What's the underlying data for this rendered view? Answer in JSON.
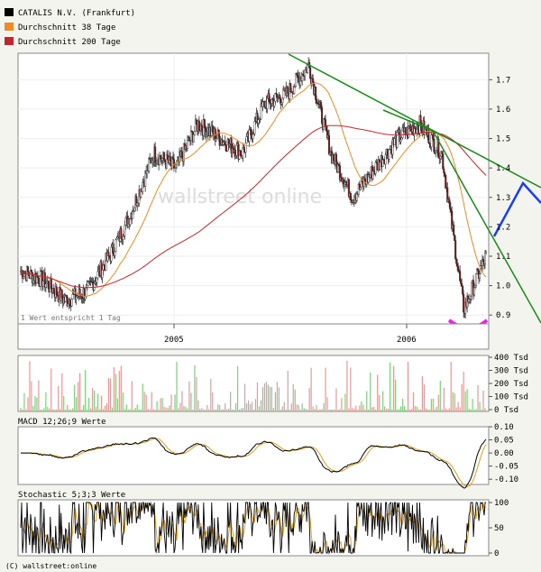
{
  "legend": [
    {
      "label": "CATALIS N.V. (Frankfurt)",
      "color": "#000000"
    },
    {
      "label": "Durchschnitt 38 Tage",
      "color": "#f08a28"
    },
    {
      "label": "Durchschnitt 200 Tage",
      "color": "#c0282c"
    }
  ],
  "watermark": "wallstreet online",
  "footer": "(C) wallstreet:online",
  "chart_data": [
    {
      "type": "line",
      "title": "",
      "series": [
        {
          "name": "CATALIS N.V. (Frankfurt)",
          "color": "#000000",
          "x": [
            "2004-07",
            "2004-08",
            "2004-09",
            "2004-10",
            "2004-11",
            "2004-12",
            "2005-01",
            "2005-02",
            "2005-03",
            "2005-04",
            "2005-05",
            "2005-06",
            "2005-07",
            "2005-08",
            "2005-09",
            "2005-10",
            "2005-11",
            "2005-12",
            "2006-01",
            "2006-02",
            "2006-03",
            "2006-04"
          ],
          "values": [
            1.05,
            1.02,
            0.95,
            0.98,
            1.1,
            1.25,
            1.45,
            1.4,
            1.55,
            1.5,
            1.45,
            1.62,
            1.65,
            1.75,
            1.45,
            1.3,
            1.4,
            1.5,
            1.55,
            1.45,
            0.92,
            1.1
          ]
        },
        {
          "name": "Durchschnitt 38 Tage",
          "color": "#f08a28"
        },
        {
          "name": "Durchschnitt 200 Tage",
          "color": "#c0282c"
        }
      ],
      "ylim": [
        0.87,
        1.79
      ],
      "y_ticks": [
        "0.9",
        "1.0",
        "1.1",
        "1.2",
        "1.3",
        "1.4",
        "1.5",
        "1.6",
        "1.7"
      ],
      "x_ticks": [
        "2005",
        "2006"
      ],
      "annotation": "1 Wert entspricht 1 Tag"
    },
    {
      "type": "bar",
      "title": "",
      "y_ticks": [
        "400 Tsd",
        "300 Tsd",
        "200 Tsd",
        "100 Tsd",
        "0 Tsd"
      ],
      "ylim": [
        0,
        400
      ]
    },
    {
      "type": "line",
      "title": "MACD 12;26;9 Werte",
      "y_ticks": [
        "0.10",
        "0.05",
        "0.00",
        "-0.05",
        "-0.10"
      ],
      "ylim": [
        -0.12,
        0.1
      ]
    },
    {
      "type": "line",
      "title": "Stochastic 5;3;3 Werte",
      "y_ticks": [
        "100",
        "50",
        "0"
      ],
      "ylim": [
        0,
        100
      ]
    }
  ]
}
